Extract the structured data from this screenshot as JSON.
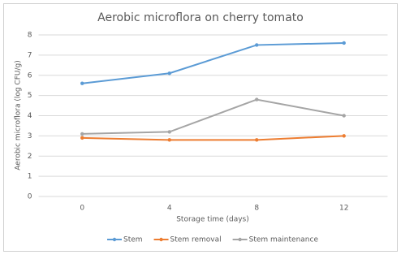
{
  "chart_data": {
    "type": "line",
    "title": "Aerobic microflora on cherry tomato",
    "x_label": "Storage time (days)",
    "y_label": "Aerobic microflora (log CFU/g)",
    "categories": [
      "0",
      "4",
      "8",
      "12"
    ],
    "series": [
      {
        "name": "Stem",
        "color": "#5b9bd5",
        "values": [
          5.6,
          6.1,
          7.5,
          7.6
        ]
      },
      {
        "name": "Stem removal",
        "color": "#ed7d31",
        "values": [
          2.9,
          2.8,
          2.8,
          3.0
        ]
      },
      {
        "name": "Stem maintenance",
        "color": "#a5a5a5",
        "values": [
          3.1,
          3.2,
          4.8,
          4.0
        ]
      }
    ],
    "ylim": [
      0,
      8
    ],
    "yticks": [
      0,
      1,
      2,
      3,
      4,
      5,
      6,
      7,
      8
    ],
    "grid": true,
    "legend": "bottom"
  }
}
